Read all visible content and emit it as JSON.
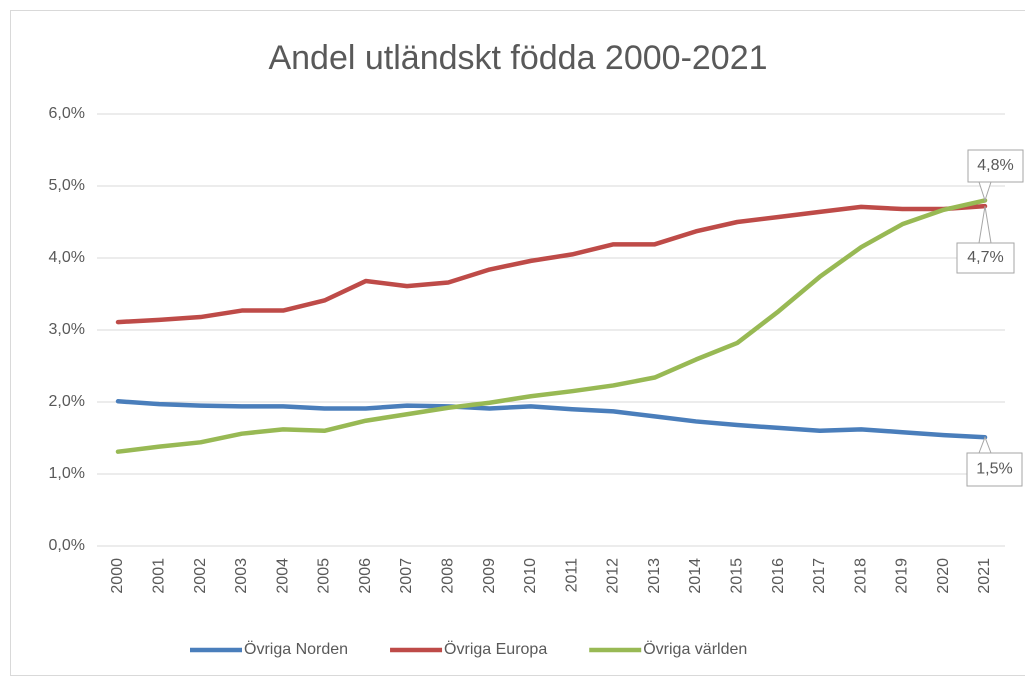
{
  "chart_data": {
    "type": "line",
    "title": "Andel utländskt födda 2000-2021",
    "categories": [
      "2000",
      "2001",
      "2002",
      "2003",
      "2004",
      "2005",
      "2006",
      "2007",
      "2008",
      "2009",
      "2010",
      "2011",
      "2012",
      "2013",
      "2014",
      "2015",
      "2016",
      "2017",
      "2018",
      "2019",
      "2020",
      "2021"
    ],
    "series": [
      {
        "name": "Övriga Norden",
        "color": "#4a7ebb",
        "values": [
          2.01,
          1.97,
          1.95,
          1.94,
          1.94,
          1.91,
          1.91,
          1.95,
          1.94,
          1.91,
          1.94,
          1.9,
          1.87,
          1.8,
          1.73,
          1.68,
          1.64,
          1.6,
          1.62,
          1.58,
          1.54,
          1.51
        ],
        "value_labels": [
          null,
          null,
          null,
          null,
          null,
          null,
          null,
          null,
          null,
          null,
          null,
          null,
          null,
          null,
          null,
          null,
          null,
          null,
          null,
          null,
          null,
          "1,5%"
        ]
      },
      {
        "name": "Övriga Europa",
        "color": "#be4b48",
        "values": [
          3.11,
          3.14,
          3.18,
          3.27,
          3.27,
          3.41,
          3.68,
          3.61,
          3.66,
          3.84,
          3.96,
          4.05,
          4.19,
          4.19,
          4.37,
          4.5,
          4.57,
          4.64,
          4.71,
          4.68,
          4.68,
          4.72
        ],
        "value_labels": [
          null,
          null,
          null,
          null,
          null,
          null,
          null,
          null,
          null,
          null,
          null,
          null,
          null,
          null,
          null,
          null,
          null,
          null,
          null,
          null,
          null,
          "4,7%"
        ]
      },
      {
        "name": "Övriga världen",
        "color": "#98b954",
        "values": [
          1.31,
          1.38,
          1.44,
          1.56,
          1.62,
          1.6,
          1.74,
          1.83,
          1.92,
          1.99,
          2.08,
          2.15,
          2.23,
          2.34,
          2.59,
          2.82,
          3.26,
          3.74,
          4.15,
          4.47,
          4.67,
          4.8
        ],
        "value_labels": [
          null,
          null,
          null,
          null,
          null,
          null,
          null,
          null,
          null,
          null,
          null,
          null,
          null,
          null,
          null,
          null,
          null,
          null,
          null,
          null,
          null,
          "4,8%"
        ]
      }
    ],
    "ylim": [
      0,
      6
    ],
    "yticks": [
      {
        "value": 0,
        "label": "0,0%"
      },
      {
        "value": 1,
        "label": "1,0%"
      },
      {
        "value": 2,
        "label": "2,0%"
      },
      {
        "value": 3,
        "label": "3,0%"
      },
      {
        "value": 4,
        "label": "4,0%"
      },
      {
        "value": 5,
        "label": "5,0%"
      },
      {
        "value": 6,
        "label": "6,0%"
      }
    ],
    "grid": true,
    "legend": "bottom"
  }
}
